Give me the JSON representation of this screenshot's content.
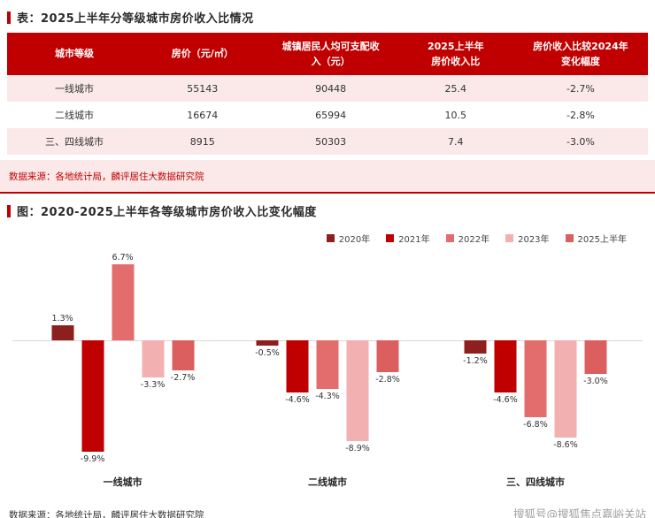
{
  "table_section": {
    "title": "表：2025上半年分等级城市房价收入比情况",
    "table": {
      "headers": [
        "城市等级",
        "房价（元/㎡）",
        "城镇居民人均可支配收\n入（元）",
        "2025上半年\n房价收入比",
        "房价收入比较2024年\n变化幅度"
      ],
      "rows": [
        [
          "一线城市",
          "55143",
          "90448",
          "25.4",
          "-2.7%"
        ],
        [
          "二线城市",
          "16674",
          "65994",
          "10.5",
          "-2.8%"
        ],
        [
          "三、四线城市",
          "8915",
          "50303",
          "7.4",
          "-3.0%"
        ]
      ]
    },
    "source": "数据来源：各地统计局，麟评居住大数据研究院"
  },
  "chart_section": {
    "title": "图：2020-2025上半年各等级城市房价收入比变化幅度"
  },
  "footer": {
    "source": "数据来源：各地统计局，麟评居住大数据研究院",
    "watermark": "搜狐号@搜狐焦点嘉峪关站"
  },
  "colors": {
    "accent_red": "#c00000",
    "table_header_bg": "#c00000",
    "row_pink": "#fbe9e9",
    "source_text": "#c00000",
    "watermark_gray": "#a0a0a0"
  },
  "chart_data": {
    "type": "bar",
    "categories": [
      "一线城市",
      "二线城市",
      "三、四线城市"
    ],
    "series": [
      {
        "name": "2020年",
        "color": "#8e1f1f",
        "values": [
          1.3,
          -0.5,
          -1.2
        ]
      },
      {
        "name": "2021年",
        "color": "#c00000",
        "values": [
          -9.9,
          -4.6,
          -4.6
        ]
      },
      {
        "name": "2022年",
        "color": "#e36d6d",
        "values": [
          6.7,
          -4.3,
          -6.8
        ]
      },
      {
        "name": "2023年",
        "color": "#f2b0b0",
        "values": [
          -3.3,
          -8.9,
          -8.6
        ]
      },
      {
        "name": "2025上半年",
        "color": "#dc5f5f",
        "values": [
          -2.7,
          -2.8,
          -3.0
        ]
      }
    ],
    "value_suffix": "%",
    "ylim": [
      -10.5,
      7.5
    ],
    "grid": false,
    "legend_position": "top-right",
    "group_centers_pct": [
      17.5,
      50,
      83
    ]
  }
}
